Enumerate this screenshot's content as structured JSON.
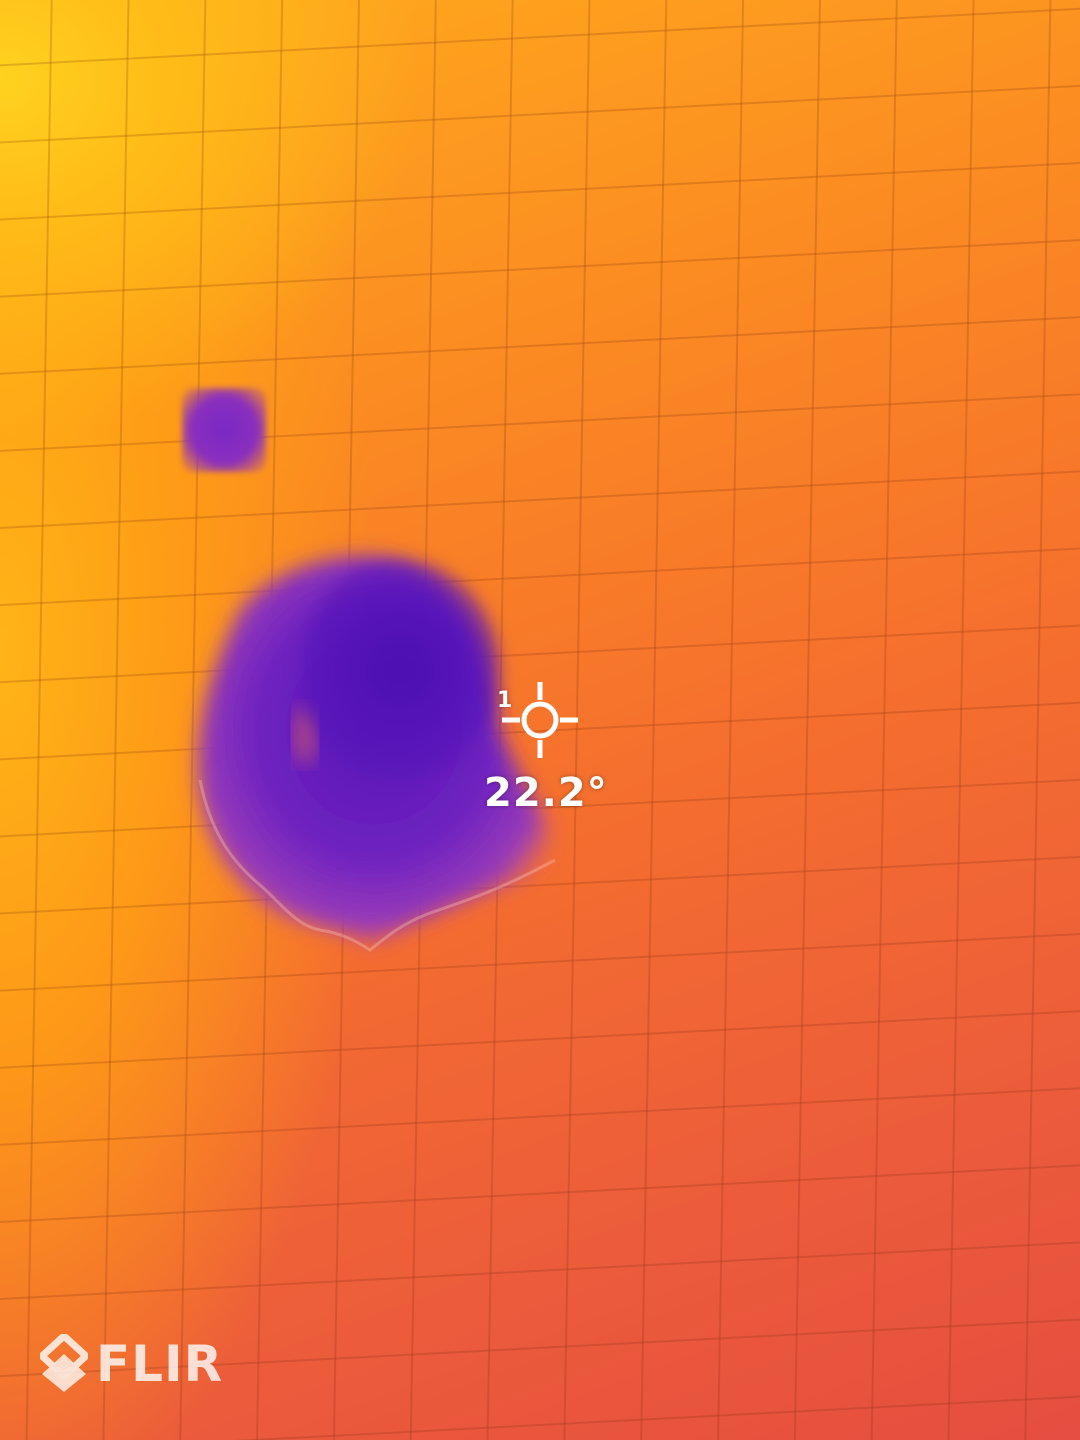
{
  "camera_view": {
    "spot_meter": {
      "index": "1",
      "temperature": "22.2°"
    }
  },
  "palette": {
    "hot": "#ffd21f",
    "warm": "#f56f2e",
    "cold": "#5614b8"
  },
  "brand": {
    "name": "FLIR"
  },
  "icons": {
    "crosshair": "crosshair-icon",
    "logo": "flir-logo-icon"
  }
}
